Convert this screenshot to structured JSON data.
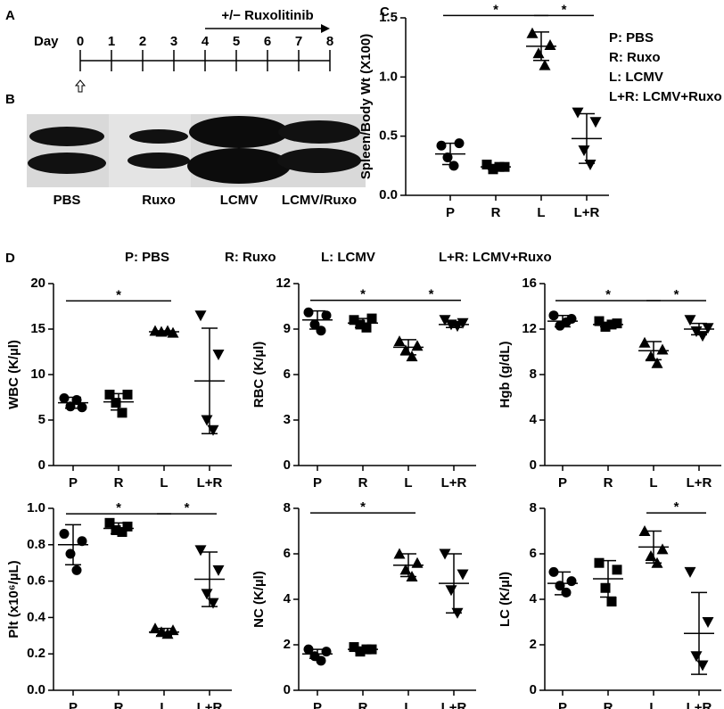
{
  "panel_labels": [
    "A",
    "B",
    "C",
    "D"
  ],
  "timeline": {
    "label": "Day",
    "days": [
      0,
      1,
      2,
      3,
      4,
      5,
      6,
      7,
      8
    ],
    "treatment": "+/− Ruxolitinib"
  },
  "photo": {
    "labels": [
      "PBS",
      "Ruxo",
      "LCMV",
      "LCMV/Ruxo"
    ]
  },
  "panel_d_key": [
    "P: PBS",
    "R: Ruxo",
    "L: LCMV",
    "L+R: LCMV+Ruxo"
  ],
  "chart_data": [
    {
      "type": "dot",
      "ylabel": "Spleen/Body Wt (X100)",
      "categories": [
        "P",
        "R",
        "L",
        "L+R"
      ],
      "color": "#000000",
      "ylim": [
        0,
        1.5
      ],
      "yticks": [
        {
          "value": 0,
          "label": "0.0"
        },
        0.5,
        {
          "value": 1,
          "label": "1.0"
        },
        1.5
      ],
      "legend": [
        "P: PBS",
        "R: Ruxo",
        "L: LCMV",
        "L+R: LCMV+Ruxo"
      ],
      "groups": [
        {
          "marker": "circle",
          "values": [
            0.42,
            0.44,
            0.32,
            0.25
          ],
          "mean": 0.35,
          "sd": 0.09
        },
        {
          "marker": "square",
          "values": [
            0.26,
            0.24,
            0.22,
            0.24
          ],
          "mean": 0.24,
          "sd": 0.02
        },
        {
          "marker": "triangle-up",
          "values": [
            1.37,
            1.27,
            1.2,
            1.1
          ],
          "mean": 1.26,
          "sd": 0.12
        },
        {
          "marker": "triangle-down",
          "values": [
            0.7,
            0.62,
            0.38,
            0.26
          ],
          "mean": 0.48,
          "sd": 0.21
        }
      ],
      "brackets": [
        {
          "label": "*",
          "y": 1.52,
          "from": "P",
          "to": "L"
        },
        {
          "label": "*",
          "y": 1.52,
          "from": "L",
          "to": "L+R"
        }
      ]
    },
    {
      "type": "dot",
      "ylabel": "WBC (K/µl)",
      "categories": [
        "P",
        "R",
        "L",
        "L+R"
      ],
      "color": "#000000",
      "ylim": [
        0,
        20
      ],
      "yticks": [
        0,
        5,
        10,
        15,
        20
      ],
      "groups": [
        {
          "marker": "circle",
          "values": [
            7.4,
            6.4,
            6.5,
            7.2
          ],
          "mean": 6.9,
          "sd": 0.6
        },
        {
          "marker": "square",
          "values": [
            7.8,
            7.8,
            6.9,
            5.8
          ],
          "mean": 7.0,
          "sd": 0.9
        },
        {
          "marker": "triangle-up",
          "values": [
            14.8,
            14.6,
            14.7,
            14.8
          ],
          "mean": 14.7,
          "sd": 0.1
        },
        {
          "marker": "triangle-down",
          "values": [
            16.5,
            12.2,
            5.0,
            3.9
          ],
          "mean": 9.3,
          "sd": 5.8
        }
      ],
      "brackets": [
        {
          "label": "*",
          "y": 18.1,
          "from": "P",
          "to": "L"
        }
      ]
    },
    {
      "type": "dot",
      "ylabel": "RBC (K/µl)",
      "categories": [
        "P",
        "R",
        "L",
        "L+R"
      ],
      "color": "#000000",
      "ylim": [
        0,
        12
      ],
      "yticks": [
        0,
        3,
        6,
        9,
        12
      ],
      "groups": [
        {
          "marker": "circle",
          "values": [
            10.1,
            9.9,
            9.3,
            8.9
          ],
          "mean": 9.6,
          "sd": 0.6
        },
        {
          "marker": "square",
          "values": [
            9.6,
            9.7,
            9.3,
            9.1
          ],
          "mean": 9.4,
          "sd": 0.3
        },
        {
          "marker": "triangle-up",
          "values": [
            8.2,
            7.9,
            7.6,
            7.2
          ],
          "mean": 7.8,
          "sd": 0.5
        },
        {
          "marker": "triangle-down",
          "values": [
            9.6,
            9.4,
            9.3,
            9.2
          ],
          "mean": 9.3,
          "sd": 0.2
        }
      ],
      "brackets": [
        {
          "label": "*",
          "y": 10.9,
          "from": "P",
          "to": "L"
        },
        {
          "label": "*",
          "y": 10.9,
          "from": "L",
          "to": "L+R"
        }
      ]
    },
    {
      "type": "dot",
      "ylabel": "Hgb (g/dL)",
      "categories": [
        "P",
        "R",
        "L",
        "L+R"
      ],
      "color": "#000000",
      "ylim": [
        0,
        16
      ],
      "yticks": [
        0,
        4,
        8,
        12,
        16
      ],
      "groups": [
        {
          "marker": "circle",
          "values": [
            13.2,
            12.9,
            12.3,
            12.6
          ],
          "mean": 12.7,
          "sd": 0.5
        },
        {
          "marker": "square",
          "values": [
            12.7,
            12.5,
            12.2,
            12.4
          ],
          "mean": 12.4,
          "sd": 0.2
        },
        {
          "marker": "triangle-up",
          "values": [
            10.8,
            10.2,
            9.6,
            9.0
          ],
          "mean": 10.1,
          "sd": 0.8
        },
        {
          "marker": "triangle-down",
          "values": [
            12.8,
            12.1,
            11.8,
            11.4
          ],
          "mean": 12.0,
          "sd": 0.5
        }
      ],
      "brackets": [
        {
          "label": "*",
          "y": 14.5,
          "from": "P",
          "to": "L"
        },
        {
          "label": "*",
          "y": 14.5,
          "from": "L",
          "to": "L+R"
        }
      ]
    },
    {
      "type": "dot",
      "ylabel": "Plt (x10⁶/µL)",
      "categories": [
        "P",
        "R",
        "L",
        "L+R"
      ],
      "color": "#000000",
      "ylim": [
        0,
        1.0
      ],
      "yticks": [
        {
          "value": 0,
          "label": "0.0"
        },
        0.2,
        0.4,
        0.6,
        0.8,
        {
          "value": 1,
          "label": "1.0"
        }
      ],
      "groups": [
        {
          "marker": "circle",
          "values": [
            0.86,
            0.82,
            0.75,
            0.66
          ],
          "mean": 0.8,
          "sd": 0.11
        },
        {
          "marker": "square",
          "values": [
            0.92,
            0.9,
            0.88,
            0.87
          ],
          "mean": 0.89,
          "sd": 0.03
        },
        {
          "marker": "triangle-up",
          "values": [
            0.34,
            0.33,
            0.32,
            0.31
          ],
          "mean": 0.32,
          "sd": 0.02
        },
        {
          "marker": "triangle-down",
          "values": [
            0.77,
            0.66,
            0.53,
            0.48
          ],
          "mean": 0.61,
          "sd": 0.15
        }
      ],
      "brackets": [
        {
          "label": "*",
          "y": 0.97,
          "from": "P",
          "to": "L"
        },
        {
          "label": "*",
          "y": 0.97,
          "from": "L",
          "to": "L+R"
        }
      ]
    },
    {
      "type": "dot",
      "ylabel": "NC (K/µl)",
      "categories": [
        "P",
        "R",
        "L",
        "L+R"
      ],
      "color": "#000000",
      "ylim": [
        0,
        8
      ],
      "yticks": [
        0,
        2,
        4,
        6,
        8
      ],
      "groups": [
        {
          "marker": "circle",
          "values": [
            1.8,
            1.7,
            1.5,
            1.3
          ],
          "mean": 1.6,
          "sd": 0.2
        },
        {
          "marker": "square",
          "values": [
            1.9,
            1.8,
            1.7,
            1.8
          ],
          "mean": 1.8,
          "sd": 0.1
        },
        {
          "marker": "triangle-up",
          "values": [
            6.0,
            5.6,
            5.3,
            5.0
          ],
          "mean": 5.5,
          "sd": 0.5
        },
        {
          "marker": "triangle-down",
          "values": [
            6.0,
            5.1,
            4.4,
            3.4
          ],
          "mean": 4.7,
          "sd": 1.3
        }
      ],
      "brackets": [
        {
          "label": "*",
          "y": 7.8,
          "from": "P",
          "to": "L"
        }
      ]
    },
    {
      "type": "dot",
      "ylabel": "LC (K/µl)",
      "categories": [
        "P",
        "R",
        "L",
        "L+R"
      ],
      "color": "#000000",
      "ylim": [
        0,
        8
      ],
      "yticks": [
        0,
        2,
        4,
        6,
        8
      ],
      "groups": [
        {
          "marker": "circle",
          "values": [
            5.2,
            4.8,
            4.6,
            4.3
          ],
          "mean": 4.7,
          "sd": 0.5
        },
        {
          "marker": "square",
          "values": [
            5.6,
            5.3,
            4.5,
            3.9
          ],
          "mean": 4.9,
          "sd": 0.8
        },
        {
          "marker": "triangle-up",
          "values": [
            7.0,
            6.2,
            5.9,
            5.6
          ],
          "mean": 6.3,
          "sd": 0.7
        },
        {
          "marker": "triangle-down",
          "values": [
            5.2,
            3.0,
            1.5,
            1.1
          ],
          "mean": 2.5,
          "sd": 1.8
        }
      ],
      "brackets": [
        {
          "label": "*",
          "y": 7.8,
          "from": "L",
          "to": "L+R"
        }
      ]
    }
  ]
}
